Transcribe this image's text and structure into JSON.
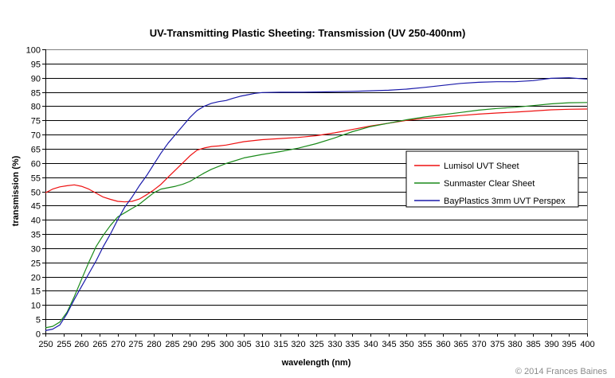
{
  "credit": "© 2014 Frances Baines",
  "chart_data": {
    "type": "line",
    "title": "UV-Transmitting Plastic Sheeting:  Transmission (UV 250-400nm)",
    "xlabel": "wavelength (nm)",
    "ylabel": "transmission (%)",
    "xlim": [
      250,
      400
    ],
    "ylim": [
      0,
      100
    ],
    "x_ticks": [
      250,
      255,
      260,
      265,
      270,
      275,
      280,
      285,
      290,
      295,
      300,
      305,
      310,
      315,
      320,
      325,
      330,
      335,
      340,
      345,
      350,
      355,
      360,
      365,
      370,
      375,
      380,
      385,
      390,
      395,
      400
    ],
    "y_ticks": [
      0,
      5,
      10,
      15,
      20,
      25,
      30,
      35,
      40,
      45,
      50,
      55,
      60,
      65,
      70,
      75,
      80,
      85,
      90,
      95,
      100
    ],
    "grid": "horizontal",
    "legend_position": "right-center",
    "series": [
      {
        "name": "Lumisol UVT Sheet",
        "color": "#ee1111",
        "x": [
          250,
          252,
          254,
          256,
          258,
          260,
          262,
          264,
          266,
          268,
          270,
          272,
          274,
          276,
          278,
          280,
          282,
          284,
          286,
          288,
          290,
          292,
          294,
          296,
          298,
          300,
          305,
          310,
          315,
          320,
          325,
          330,
          335,
          340,
          345,
          350,
          355,
          360,
          365,
          370,
          375,
          380,
          385,
          390,
          395,
          400
        ],
        "y": [
          49.5,
          50.8,
          51.6,
          52.0,
          52.3,
          51.8,
          50.8,
          49.4,
          48.0,
          47.2,
          46.5,
          46.3,
          46.5,
          47.3,
          48.8,
          50.5,
          52.5,
          55.0,
          57.5,
          60.0,
          62.5,
          64.5,
          65.3,
          65.8,
          66.0,
          66.3,
          67.5,
          68.2,
          68.6,
          69.0,
          69.6,
          70.6,
          71.8,
          73.0,
          74.0,
          75.0,
          75.7,
          76.2,
          76.7,
          77.2,
          77.6,
          77.9,
          78.3,
          78.7,
          78.9,
          79.0
        ]
      },
      {
        "name": "Sunmaster Clear Sheet",
        "color": "#1a8a1a",
        "x": [
          250,
          252,
          254,
          256,
          258,
          260,
          262,
          264,
          266,
          268,
          270,
          272,
          274,
          276,
          278,
          280,
          282,
          284,
          286,
          288,
          290,
          292,
          294,
          296,
          298,
          300,
          305,
          310,
          315,
          320,
          325,
          330,
          335,
          340,
          345,
          350,
          355,
          360,
          365,
          370,
          375,
          380,
          385,
          390,
          395,
          400
        ],
        "y": [
          2.0,
          2.5,
          4.0,
          7.5,
          13.0,
          19.0,
          25.0,
          30.5,
          34.5,
          38.0,
          41.0,
          42.5,
          44.0,
          45.5,
          47.5,
          49.5,
          50.8,
          51.3,
          51.8,
          52.5,
          53.5,
          55.0,
          56.5,
          57.8,
          58.8,
          59.8,
          61.8,
          63.0,
          64.0,
          65.2,
          66.8,
          68.8,
          71.0,
          72.8,
          74.0,
          75.2,
          76.2,
          77.0,
          77.8,
          78.6,
          79.2,
          79.6,
          80.2,
          80.8,
          81.2,
          81.3
        ]
      },
      {
        "name": "BayPlastics 3mm UVT Perspex",
        "color": "#1a1aaa",
        "x": [
          250,
          252,
          254,
          256,
          258,
          260,
          262,
          264,
          266,
          268,
          270,
          272,
          274,
          276,
          278,
          280,
          282,
          284,
          286,
          288,
          290,
          292,
          294,
          296,
          298,
          300,
          302,
          304,
          306,
          308,
          310,
          315,
          320,
          325,
          330,
          335,
          340,
          345,
          350,
          355,
          360,
          365,
          370,
          375,
          380,
          385,
          390,
          395,
          400
        ],
        "y": [
          1.0,
          1.5,
          3.0,
          7.0,
          12.0,
          16.5,
          21.0,
          25.5,
          30.5,
          35.0,
          40.0,
          44.5,
          48.0,
          52.0,
          55.5,
          59.5,
          63.5,
          67.0,
          70.0,
          73.0,
          76.0,
          78.5,
          80.0,
          81.0,
          81.6,
          82.0,
          82.8,
          83.5,
          84.0,
          84.5,
          84.8,
          84.9,
          84.9,
          85.0,
          85.1,
          85.2,
          85.4,
          85.6,
          86.0,
          86.6,
          87.3,
          88.0,
          88.4,
          88.6,
          88.6,
          89.0,
          89.8,
          90.0,
          89.5
        ]
      }
    ]
  }
}
